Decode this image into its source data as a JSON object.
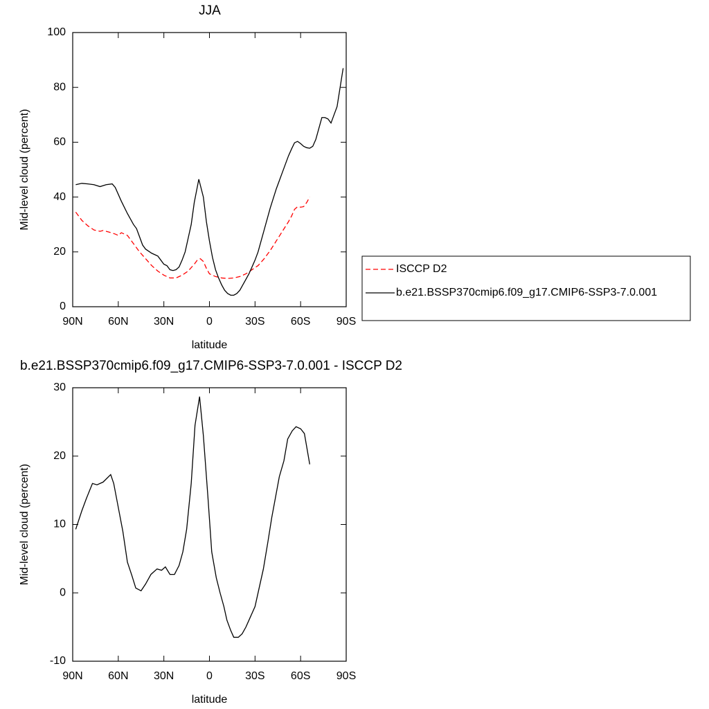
{
  "chart_data": [
    {
      "type": "line",
      "title": "JJA",
      "xlabel": "latitude",
      "ylabel": "Mid-level cloud (percent)",
      "xlim": [
        90,
        -90
      ],
      "xticks": [
        {
          "value": 90,
          "label": "90N"
        },
        {
          "value": 60,
          "label": "60N"
        },
        {
          "value": 30,
          "label": "30N"
        },
        0,
        {
          "value": -30,
          "label": "30S"
        },
        {
          "value": -60,
          "label": "60S"
        },
        {
          "value": -90,
          "label": "90S"
        }
      ],
      "ylim": [
        0,
        100
      ],
      "yticks": [
        0,
        20,
        40,
        60,
        80,
        100
      ],
      "legend": "right",
      "series": [
        {
          "name": "ISCCP D2",
          "color": "#ff0000",
          "style": "dashed",
          "x": [
            88,
            84,
            80,
            76,
            72,
            70,
            66,
            62,
            60,
            58,
            54,
            50,
            46,
            42,
            38,
            34,
            30,
            26,
            22,
            18,
            14,
            10,
            8,
            6,
            4,
            2,
            0,
            -4,
            -8,
            -12,
            -16,
            -20,
            -24,
            -28,
            -32,
            -36,
            -40,
            -44,
            -48,
            -52,
            -54,
            -56,
            -58,
            -60,
            -62,
            -64,
            -66
          ],
          "values": [
            34.5,
            31.5,
            29.5,
            28,
            27.5,
            27.8,
            27.2,
            26.5,
            26,
            27,
            26,
            23,
            20,
            17.5,
            15,
            13,
            11.5,
            10.5,
            10.5,
            11.5,
            13,
            15.5,
            17,
            17.5,
            16.5,
            14,
            12,
            11,
            10.5,
            10.3,
            10.5,
            11,
            12,
            13.5,
            15,
            17.5,
            20.5,
            24,
            27.5,
            31,
            33,
            35.5,
            36.5,
            36.3,
            36.5,
            38,
            40
          ]
        },
        {
          "name": "b.e21.BSSP370cmip6.f09_g17.CMIP6-SSP3-7.0.001",
          "color": "#000000",
          "style": "solid",
          "x": [
            88,
            84,
            80,
            76,
            72,
            68,
            64,
            62,
            58,
            54,
            50,
            48,
            46,
            44,
            42,
            38,
            34,
            32,
            30,
            28,
            26,
            24,
            22,
            20,
            18,
            16,
            14,
            12,
            10,
            7,
            4,
            2,
            0,
            -2,
            -4,
            -6,
            -8,
            -10,
            -12,
            -14,
            -16,
            -18,
            -20,
            -22,
            -24,
            -26,
            -28,
            -30,
            -32,
            -34,
            -36,
            -38,
            -40,
            -42,
            -44,
            -46,
            -48,
            -50,
            -52,
            -54,
            -56,
            -58,
            -60,
            -62,
            -64,
            -66,
            -68,
            -70,
            -72,
            -74,
            -76,
            -78,
            -80,
            -82,
            -84,
            -86,
            -88
          ],
          "values": [
            44.5,
            45,
            44.8,
            44.5,
            43.8,
            44.5,
            44.8,
            43.5,
            38.5,
            34,
            30,
            28.5,
            25.5,
            22.5,
            21,
            19.5,
            18.5,
            17,
            15.5,
            15,
            13.5,
            13.2,
            13.5,
            14.5,
            17,
            20,
            25,
            30,
            38,
            46.5,
            40,
            31,
            24,
            18,
            13.5,
            10.5,
            8,
            6,
            4.8,
            4.2,
            4.2,
            4.8,
            6,
            8,
            10,
            12,
            14.5,
            17,
            20,
            24,
            28,
            32,
            36,
            39.5,
            43,
            46,
            49,
            52,
            55,
            57.5,
            59.8,
            60.3,
            59.5,
            58.5,
            58,
            57.8,
            58.5,
            61,
            65,
            69,
            69,
            68.5,
            67,
            70,
            73,
            80,
            87
          ]
        }
      ]
    },
    {
      "type": "line",
      "title": "b.e21.BSSP370cmip6.f09_g17.CMIP6-SSP3-7.0.001 - ISCCP D2",
      "xlabel": "latitude",
      "ylabel": "Mid-level cloud (percent)",
      "xlim": [
        90,
        -90
      ],
      "xticks": [
        {
          "value": 90,
          "label": "90N"
        },
        {
          "value": 60,
          "label": "60N"
        },
        {
          "value": 30,
          "label": "30N"
        },
        0,
        {
          "value": -30,
          "label": "30S"
        },
        {
          "value": -60,
          "label": "60S"
        },
        {
          "value": -90,
          "label": "90S"
        }
      ],
      "ylim": [
        -10,
        30
      ],
      "yticks": [
        -10,
        0,
        10,
        20,
        30
      ],
      "series": [
        {
          "color": "#000000",
          "style": "solid",
          "x": [
            88,
            84,
            81,
            77,
            74,
            70,
            65,
            63,
            60,
            57,
            54,
            51,
            48.5,
            45,
            42,
            38.5,
            34.5,
            31.5,
            29,
            26,
            23,
            20,
            17.5,
            15,
            12,
            9.5,
            6.5,
            4,
            1,
            -1.5,
            -4.5,
            -7,
            -9.5,
            -11.5,
            -14,
            -16,
            -19,
            -21.5,
            -24,
            -27,
            -30,
            -32.5,
            -35.5,
            -38.5,
            -41,
            -43.5,
            -46,
            -49,
            -51.5,
            -54.5,
            -57,
            -60,
            -62.5,
            -66
          ],
          "values": [
            9.3,
            12,
            13.8,
            16,
            15.8,
            16.2,
            17.3,
            16,
            12.5,
            9,
            4.5,
            2.5,
            0.7,
            0.3,
            1.3,
            2.7,
            3.5,
            3.3,
            3.8,
            2.7,
            2.7,
            4,
            6,
            9.3,
            16,
            24.5,
            28.7,
            23,
            14,
            6,
            2.2,
            0,
            -2,
            -4,
            -5.5,
            -6.5,
            -6.5,
            -6,
            -5,
            -3.5,
            -2,
            0.5,
            3.5,
            7.5,
            11,
            14,
            17,
            19.3,
            22.5,
            23.7,
            24.3,
            24,
            23.3,
            18.8
          ]
        }
      ]
    }
  ]
}
